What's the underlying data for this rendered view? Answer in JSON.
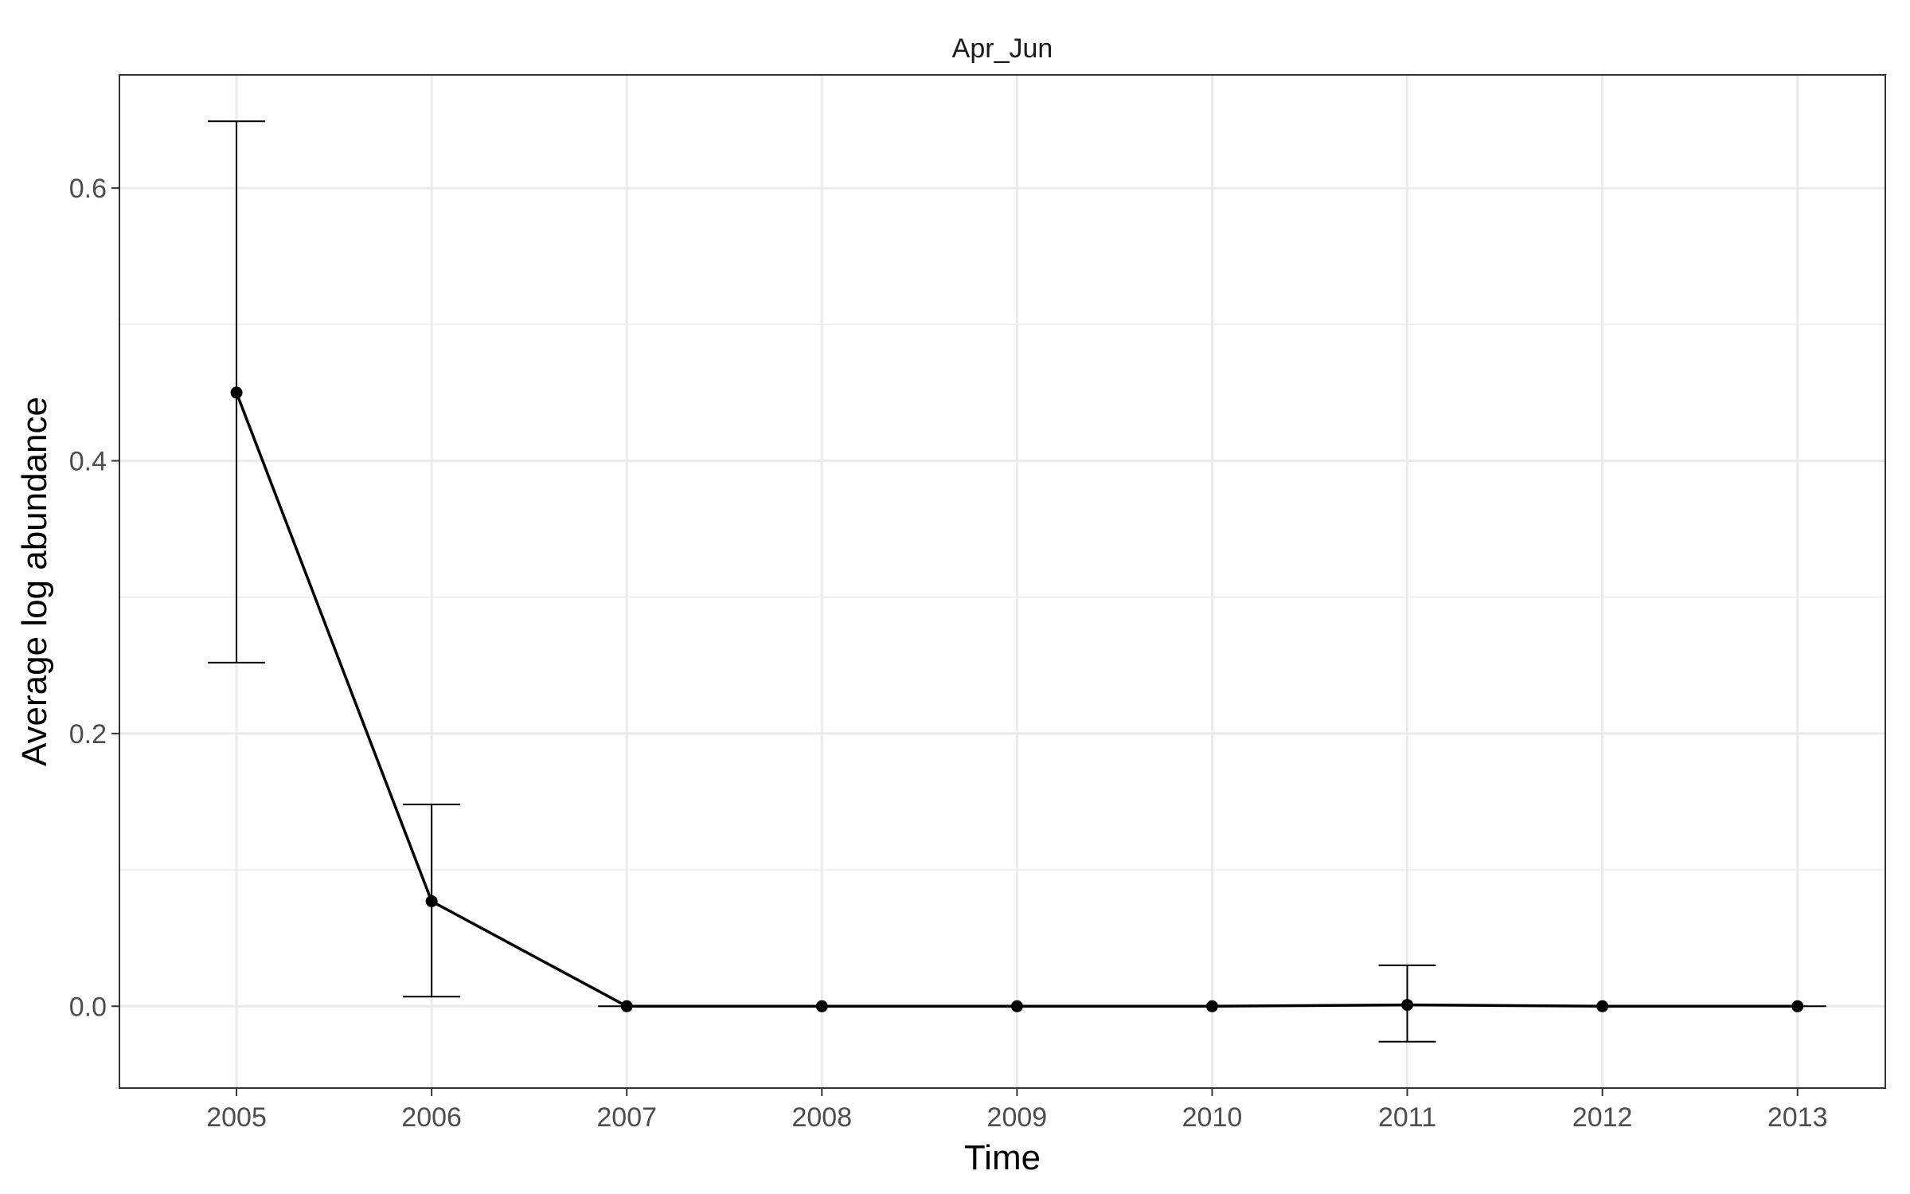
{
  "chart_data": {
    "type": "line",
    "title": "",
    "facet_label": "Apr_Jun",
    "xlabel": "Time",
    "ylabel": "Average log abundance",
    "x": [
      2005,
      2006,
      2007,
      2008,
      2009,
      2010,
      2011,
      2012,
      2013
    ],
    "x_tick_labels": [
      "2005",
      "2006",
      "2007",
      "2008",
      "2009",
      "2010",
      "2011",
      "2012",
      "2013"
    ],
    "xlim": [
      2004.4,
      2013.45
    ],
    "ylim": [
      -0.06,
      0.683
    ],
    "y_ticks": [
      0.0,
      0.2,
      0.4,
      0.6
    ],
    "y_tick_labels": [
      "0.0",
      "0.2",
      "0.4",
      "0.6"
    ],
    "y_minor_ticks": [
      0.1,
      0.3,
      0.5
    ],
    "grid": true,
    "series": [
      {
        "values": [
          0.45,
          0.077,
          0.0,
          0.0,
          0.0,
          0.0,
          0.001,
          0.0,
          0.0
        ],
        "error_low": [
          0.252,
          0.007,
          null,
          null,
          null,
          null,
          -0.026,
          null,
          null
        ],
        "error_high": [
          0.649,
          0.148,
          null,
          null,
          null,
          null,
          0.03,
          null,
          null
        ]
      }
    ],
    "colors": {
      "line": "#000000",
      "grid": "#ebebeb",
      "panel_border": "#333333"
    }
  }
}
